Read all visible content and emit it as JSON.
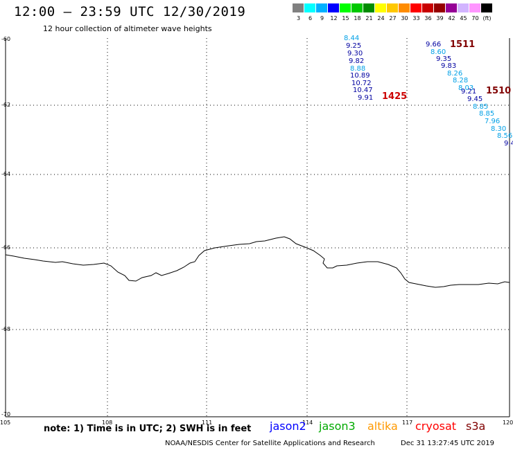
{
  "header": {
    "title": "12:00 – 23:59 UTC 12/30/2019",
    "subtitle": "12 hour collection of altimeter wave heights"
  },
  "color_scale": {
    "colors": [
      "#808080",
      "#00ffff",
      "#00b0ff",
      "#0000ff",
      "#00ff00",
      "#00c800",
      "#008c00",
      "#ffff00",
      "#ffc800",
      "#ff8c00",
      "#ff0000",
      "#c80000",
      "#960000",
      "#960096",
      "#d2b4ff",
      "#ff96ff",
      "#000000"
    ],
    "labels": [
      "3",
      "6",
      "9",
      "12",
      "15",
      "18",
      "21",
      "24",
      "27",
      "30",
      "33",
      "36",
      "39",
      "42",
      "45",
      "70",
      "(ft)"
    ]
  },
  "axes": {
    "lat_labels": [
      "-60",
      "-62",
      "-64",
      "-66",
      "-68",
      "-70"
    ],
    "lon_labels": [
      "105",
      "108",
      "111",
      "114",
      "117",
      "120"
    ]
  },
  "observations": {
    "track_a": [
      "8.44",
      "9.25",
      "9.30",
      "9.82",
      "8.88",
      "10.89",
      "10.72",
      "10.47",
      "9.91"
    ],
    "track_a_label": "1425",
    "track_b": [
      "9.66",
      "8.60",
      "9.35",
      "9.83",
      "8.26",
      "8.28",
      "8.03",
      "9.21",
      "9.45",
      "8.85",
      "8.85",
      "7.96",
      "8.30",
      "8.56",
      "9.4"
    ],
    "track_b_label_top": "1511",
    "track_b_label_side": "1510"
  },
  "footer": {
    "note": "note: 1) Time is in UTC; 2) SWH is in feet",
    "satellites": [
      {
        "name": "jason2",
        "color": "#0000ff"
      },
      {
        "name": "jason3",
        "color": "#00aa00"
      },
      {
        "name": "altika",
        "color": "#ff9900"
      },
      {
        "name": "cryosat",
        "color": "#ff0000"
      },
      {
        "name": "s3a",
        "color": "#800000"
      }
    ],
    "credit": "NOAA/NESDIS Center for Satellite Applications and Research",
    "timestamp": "Dec 31 13:27:45 UTC 2019"
  }
}
